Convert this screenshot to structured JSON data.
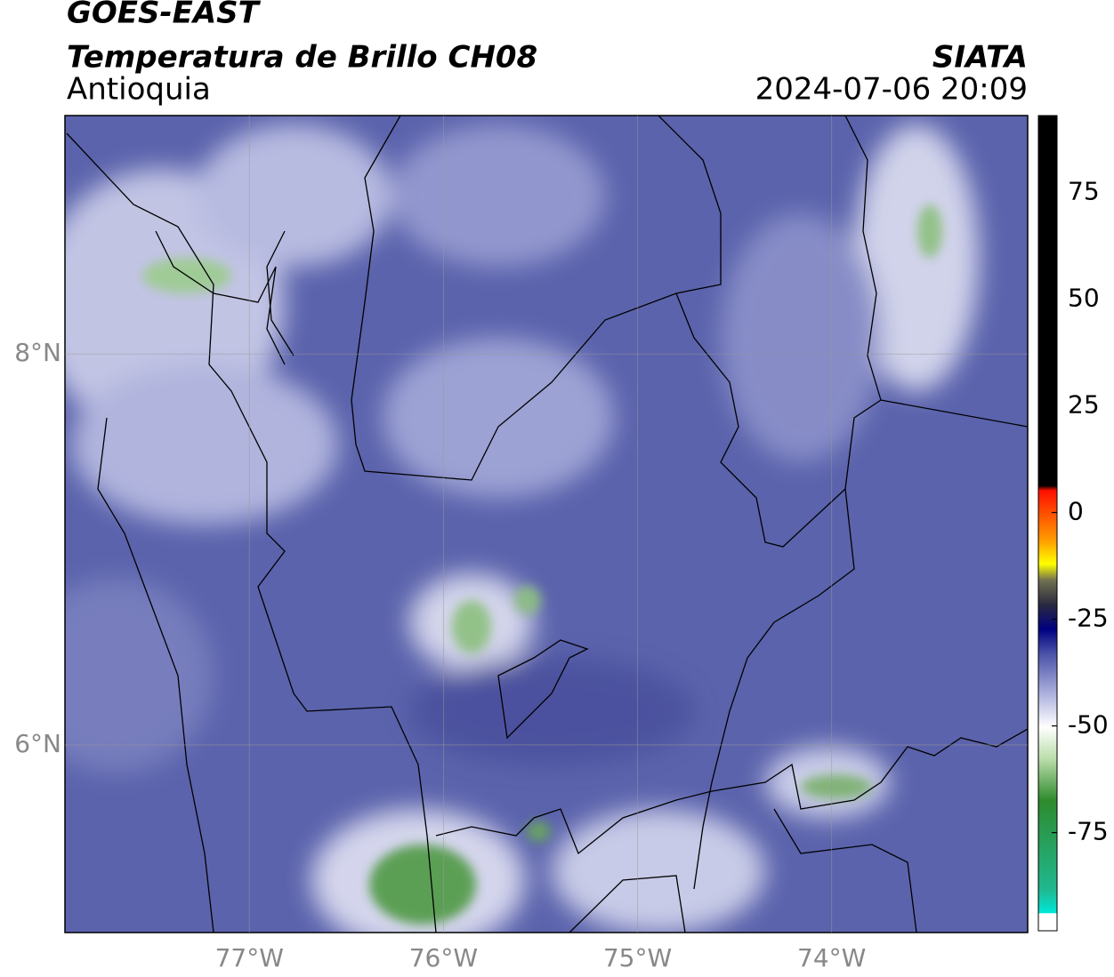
{
  "header": {
    "title": "GOES-EAST",
    "subtitle": "Temperatura de Brillo CH08",
    "region": "Antioquia",
    "source": "SIATA",
    "timestamp": "2024-07-06 20:09"
  },
  "map": {
    "xlim": [
      -77.95,
      -72.99
    ],
    "ylim": [
      5.04,
      9.22
    ],
    "xticks": [
      {
        "value": -77,
        "label": "77°W"
      },
      {
        "value": -76,
        "label": "76°W"
      },
      {
        "value": -75,
        "label": "75°W"
      },
      {
        "value": -74,
        "label": "74°W"
      }
    ],
    "yticks": [
      {
        "value": 6,
        "label": "6°N"
      },
      {
        "value": 8,
        "label": "8°N"
      }
    ],
    "grid": true
  },
  "colorbar": {
    "lim": [
      -98,
      93
    ],
    "ticks": [
      75,
      50,
      25,
      0,
      -25,
      -50,
      -75
    ]
  }
}
